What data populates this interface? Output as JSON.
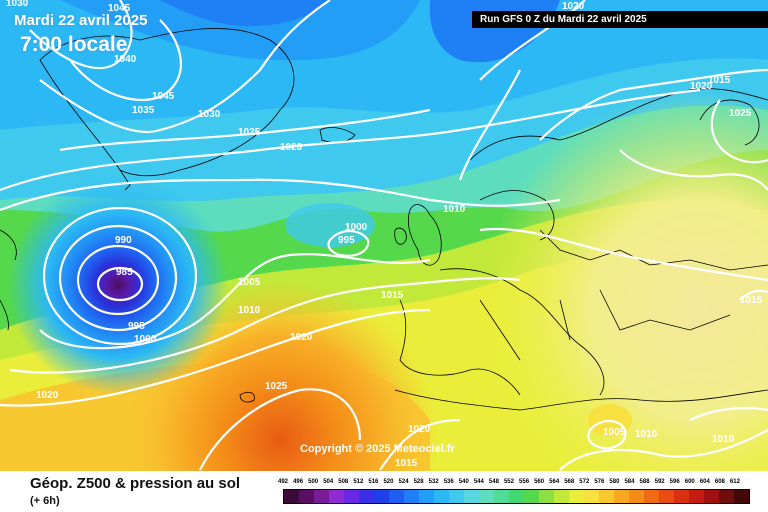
{
  "header": {
    "date_title": "Mardi 22 avril 2025",
    "time_title": "7:00 locale",
    "run_info": "Run GFS 0 Z du Mardi 22 avril 2025"
  },
  "copyright": "Copyright © 2025 Meteociel.fr",
  "legend": {
    "title": "Géop. Z500 & pression au sol",
    "subtitle": "(+ 6h)",
    "scale_values": [
      "492",
      "496",
      "500",
      "504",
      "508",
      "512",
      "516",
      "520",
      "524",
      "528",
      "532",
      "536",
      "540",
      "544",
      "548",
      "552",
      "556",
      "560",
      "564",
      "568",
      "572",
      "576",
      "580",
      "584",
      "588",
      "592",
      "596",
      "600",
      "604",
      "608",
      "612"
    ],
    "scale_colors": [
      "#3c0a3a",
      "#5a0f64",
      "#7a1b98",
      "#8e2bd2",
      "#6a28e6",
      "#3a2ee6",
      "#1f3fe8",
      "#1e5ff2",
      "#1f80f6",
      "#239ef7",
      "#2bb8f4",
      "#3fc9ee",
      "#58d6e2",
      "#5dddbe",
      "#4fdc96",
      "#42d86e",
      "#55d84c",
      "#8ee040",
      "#c2e83a",
      "#eaee3a",
      "#f8e040",
      "#f8c830",
      "#f8a820",
      "#f48c18",
      "#f06a14",
      "#e84c12",
      "#d83010",
      "#c41c10",
      "#a01010",
      "#700c0c",
      "#400808"
    ]
  },
  "map": {
    "isobar_labels": [
      "1045",
      "1040",
      "1030",
      "1045",
      "1035",
      "1030",
      "1025",
      "1020",
      "1020",
      "1015",
      "1020",
      "1025",
      "1010",
      "1000",
      "995",
      "990",
      "985",
      "995",
      "1000",
      "1005",
      "1010",
      "1015",
      "1020",
      "1025",
      "1020",
      "1020",
      "1015",
      "1005",
      "1010",
      "1010",
      "1015"
    ],
    "low_center": "985 hPa",
    "colors": {
      "contour": "#ffffff",
      "coast": "#000000"
    }
  }
}
